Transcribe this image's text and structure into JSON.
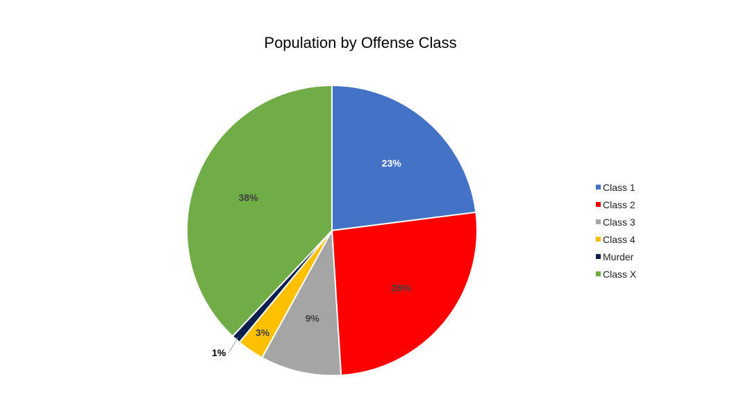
{
  "chart_data": {
    "type": "pie",
    "title": "Population by Offense Class",
    "categories": [
      "Class 1",
      "Class 2",
      "Class 3",
      "Class 4",
      "Murder",
      "Class X"
    ],
    "values": [
      23,
      26,
      9,
      3,
      1,
      38
    ],
    "labels": [
      "23%",
      "26%",
      "9%",
      "3%",
      "1%",
      "38%"
    ],
    "colors": [
      "#4472C4",
      "#FF0000",
      "#A5A5A5",
      "#FFC000",
      "#0B1F4F",
      "#70AD47"
    ],
    "label_colors": [
      "#FFFFFF",
      "#404040",
      "#404040",
      "#404040",
      "#000000",
      "#404040"
    ],
    "start_angle_deg": 0,
    "direction": "clockwise",
    "legend_position": "right"
  }
}
